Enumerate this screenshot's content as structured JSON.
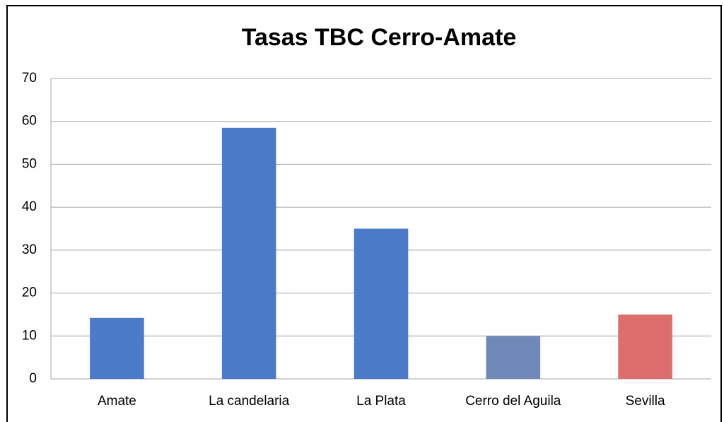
{
  "chart_data": {
    "type": "bar",
    "title": "Tasas TBC Cerro-Amate",
    "categories": [
      "Amate",
      "La candelaria",
      "La Plata",
      "Cerro del Aguila",
      "Sevilla"
    ],
    "values": [
      14.2,
      58.5,
      35,
      10,
      15
    ],
    "colors": [
      "#4a7ac8",
      "#4a7ac8",
      "#4a7ac8",
      "#6f89b8",
      "#dc6e6e"
    ],
    "ylim": [
      0,
      70
    ],
    "yticks": [
      0,
      10,
      20,
      30,
      40,
      50,
      60,
      70
    ],
    "grid": true
  }
}
